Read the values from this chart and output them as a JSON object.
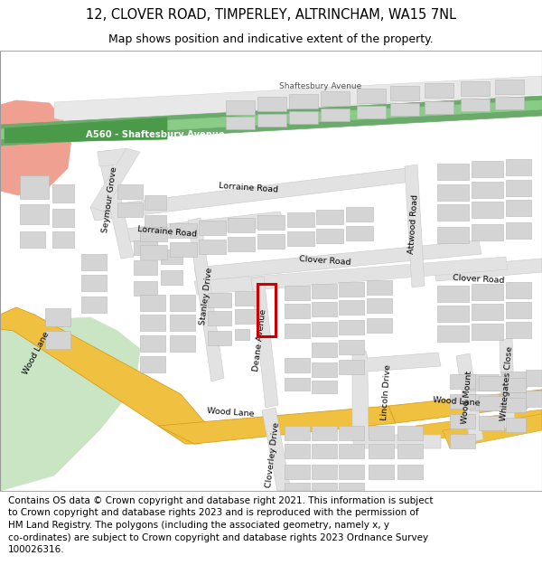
{
  "title_line1": "12, CLOVER ROAD, TIMPERLEY, ALTRINCHAM, WA15 7NL",
  "title_line2": "Map shows position and indicative extent of the property.",
  "footer_text": "Contains OS data © Crown copyright and database right 2021. This information is subject\nto Crown copyright and database rights 2023 and is reproduced with the permission of\nHM Land Registry. The polygons (including the associated geometry, namely x, y\nco-ordinates) are subject to Crown copyright and database rights 2023 Ordnance Survey\n100026316.",
  "map_bg": "#f5f5f5",
  "road_color": "#e2e2e2",
  "road_outline": "#c8c8c8",
  "building_color": "#d4d4d4",
  "building_outline": "#b8b8b8",
  "green_area": "#c9e5c4",
  "a560_green": "#6aaa6a",
  "yellow_road": "#f0c040",
  "yellow_outline": "#d4a020",
  "red_box": "#cc0000",
  "pink_area": "#f0a090",
  "white": "#ffffff",
  "title_fontsize": 10.5,
  "subtitle_fontsize": 9.0,
  "footer_fontsize": 7.5,
  "label_fontsize": 6.8,
  "fig_width": 6.0,
  "fig_height": 6.25,
  "dpi": 100
}
